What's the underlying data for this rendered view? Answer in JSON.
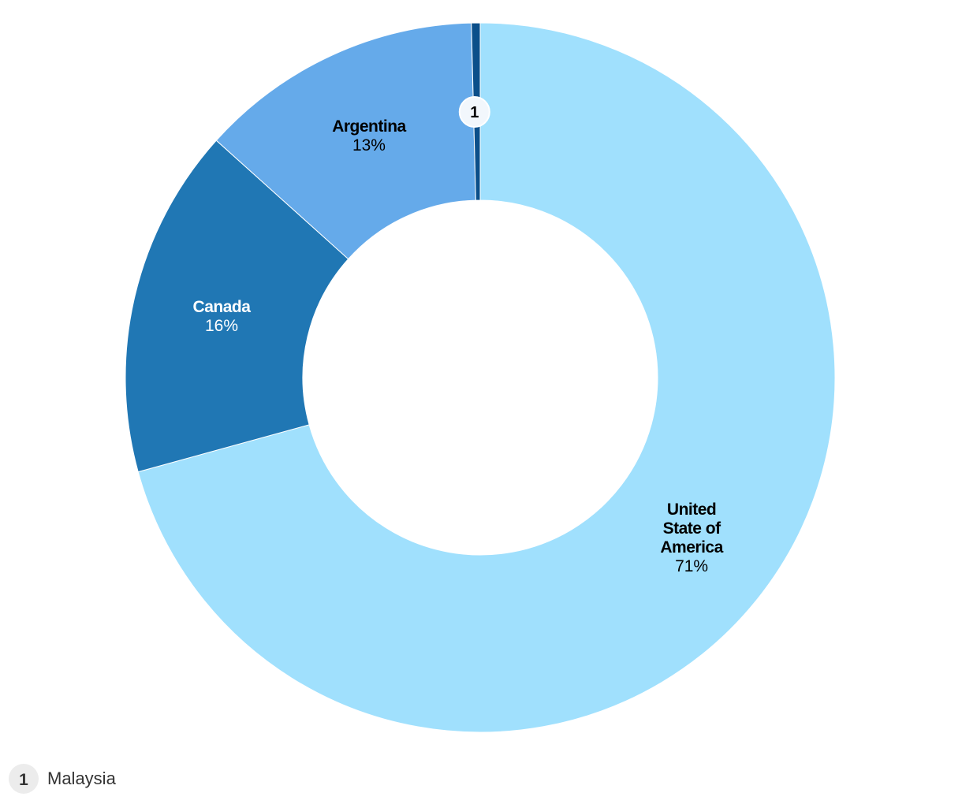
{
  "chart_data": {
    "type": "donut",
    "categories": [
      "United State of America",
      "Canada",
      "Argentina",
      "Malaysia"
    ],
    "values": [
      71,
      16,
      13,
      0.4
    ],
    "value_labels": [
      "71%",
      "16%",
      "13%",
      null
    ],
    "colors": [
      "#a0e0fd",
      "#2077b4",
      "#65aaea",
      "#0b4f8a"
    ],
    "label_colors": [
      "#000000",
      "#ffffff",
      "#000000",
      "#000000"
    ],
    "callout": "1"
  }
}
